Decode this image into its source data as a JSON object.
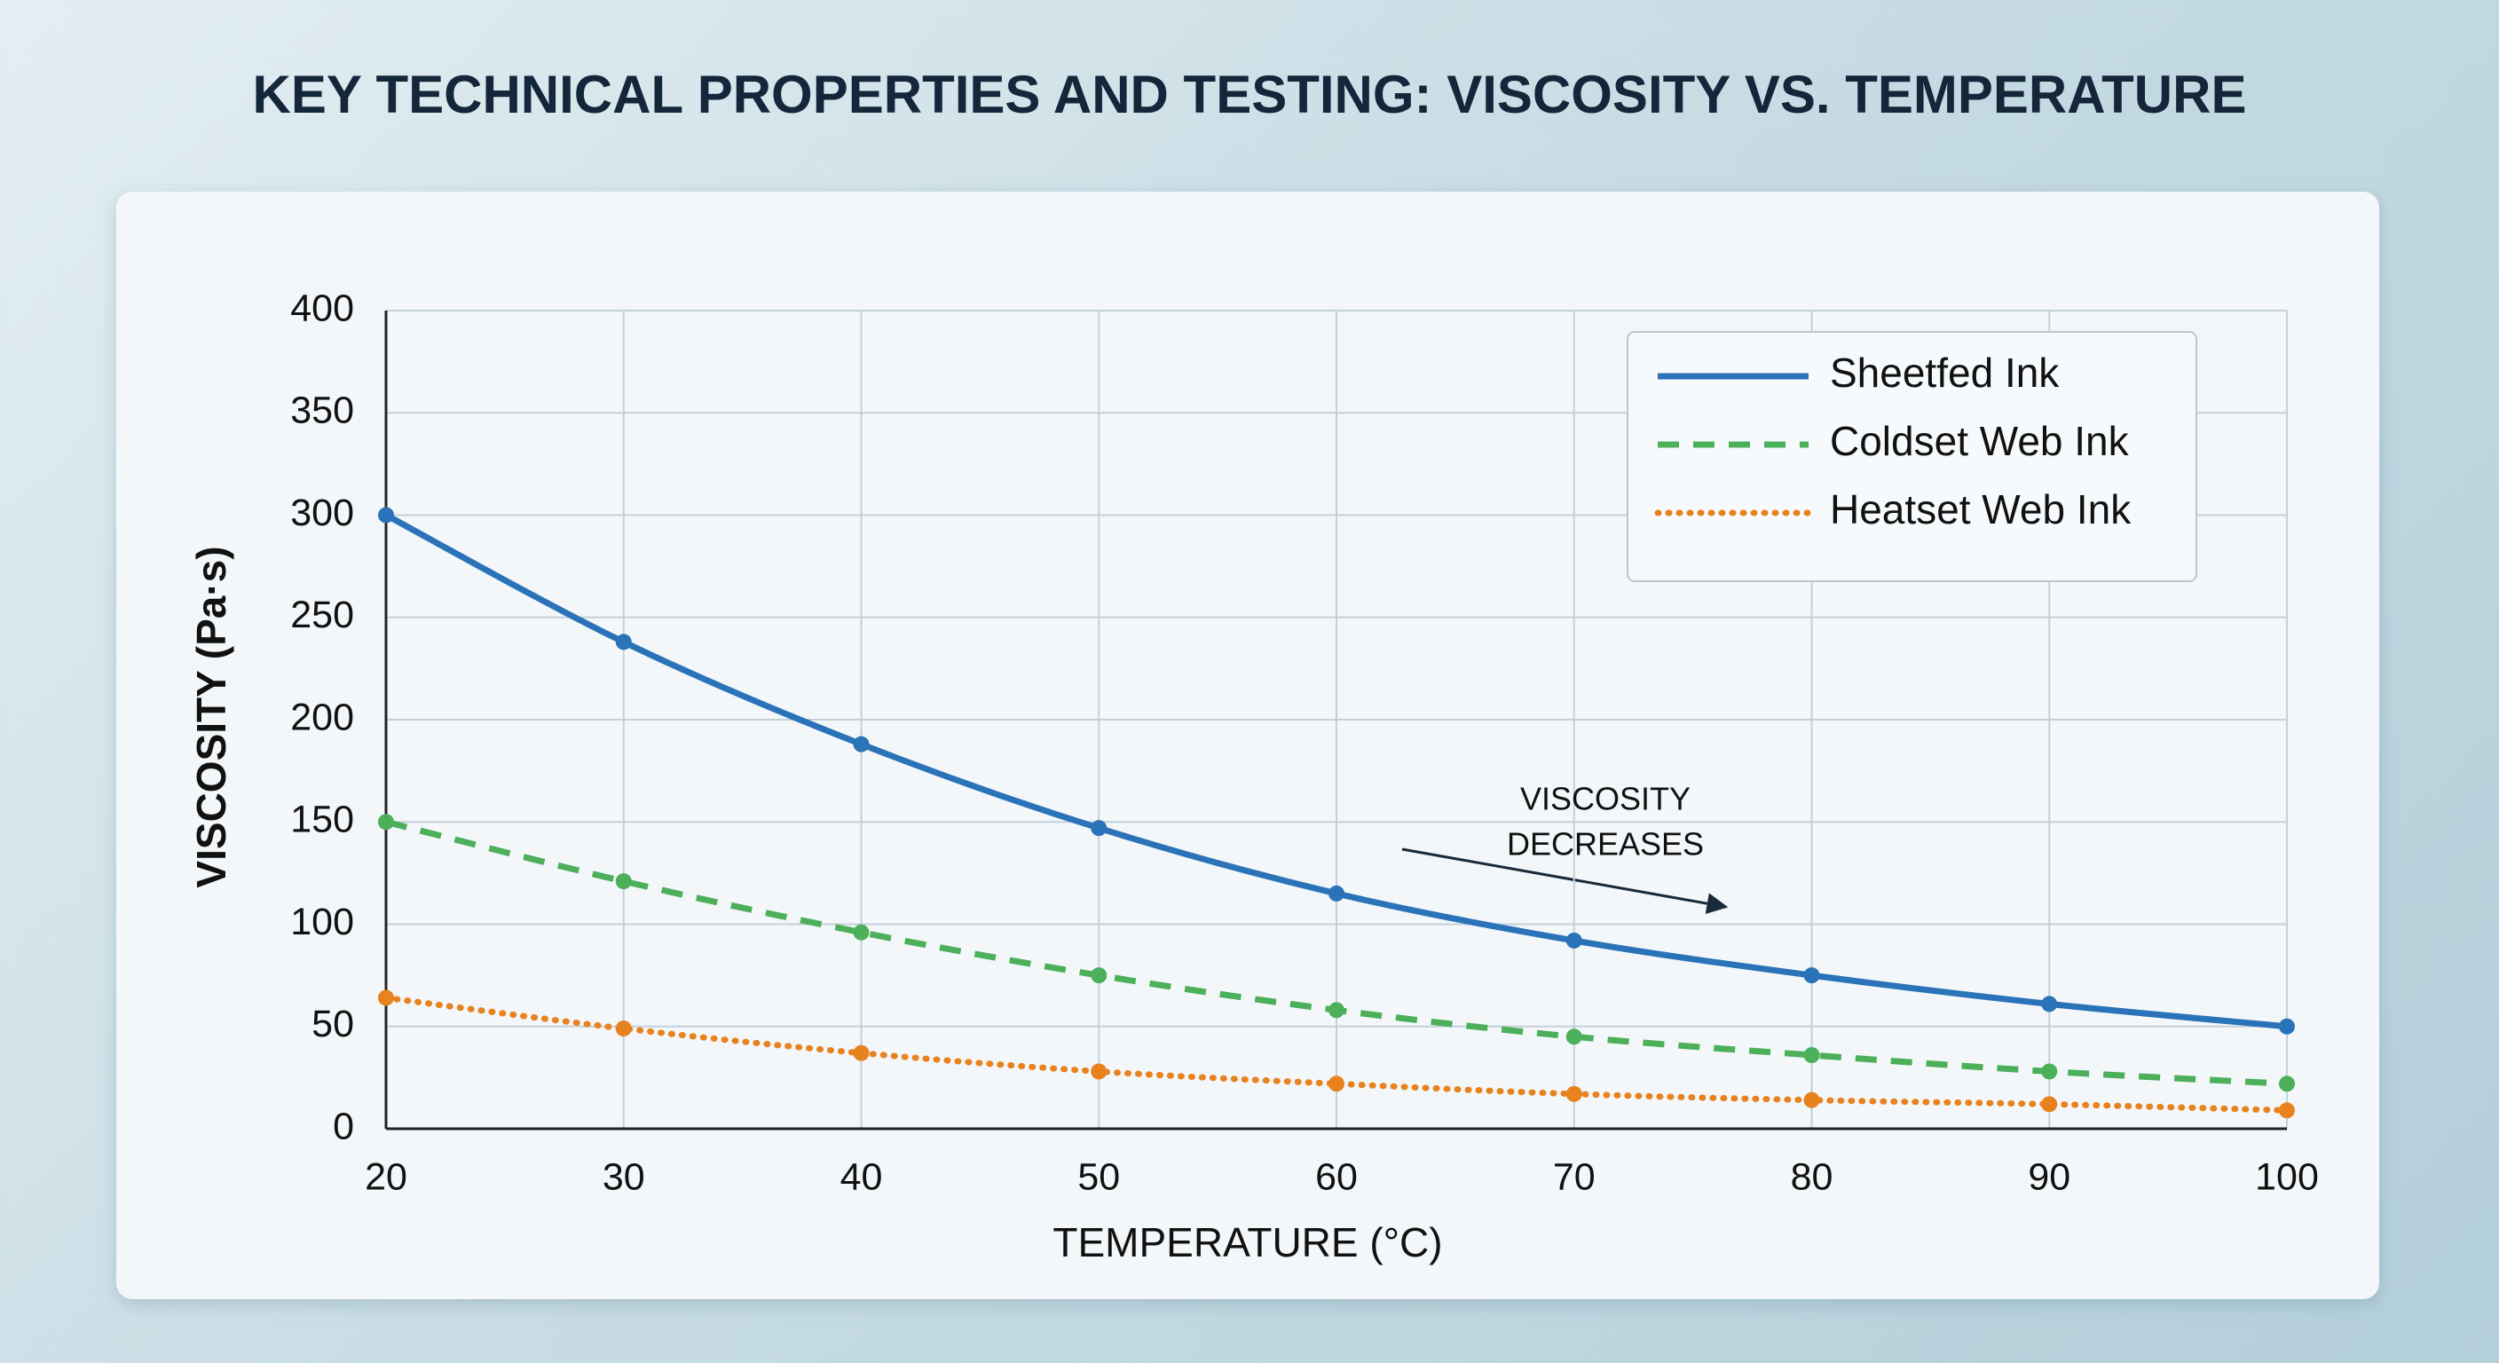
{
  "chart_data": {
    "type": "line",
    "title": "KEY TECHNICAL PROPERTIES AND TESTING: VISCOSITY VS. TEMPERATURE",
    "x_label": "TEMPERATURE (°C)",
    "y_label": "VISCOSITY (Pa·s)",
    "x": [
      20,
      30,
      40,
      50,
      60,
      70,
      80,
      90,
      100
    ],
    "series": [
      {
        "name": "Sheetfed Ink",
        "color": "#2a73b8",
        "dash": "solid",
        "values": [
          300,
          238,
          188,
          147,
          115,
          92,
          75,
          61,
          50
        ]
      },
      {
        "name": "Coldset Web Ink",
        "color": "#4caf5a",
        "dash": "dashed",
        "values": [
          150,
          121,
          96,
          75,
          58,
          45,
          36,
          28,
          22
        ]
      },
      {
        "name": "Heatset Web Ink",
        "color": "#e8821e",
        "dash": "dotted",
        "values": [
          64,
          49,
          37,
          28,
          22,
          17,
          14,
          12,
          9
        ]
      }
    ],
    "xlim": [
      20,
      100
    ],
    "xticks": [
      20,
      30,
      40,
      50,
      60,
      70,
      80,
      90,
      100
    ],
    "ylim": [
      0,
      400
    ],
    "yticks": [
      0,
      50,
      100,
      150,
      200,
      250,
      300,
      350,
      400
    ],
    "grid": true,
    "legend": "upper right",
    "annotation": [
      "VISCOSITY",
      "DECREASES"
    ]
  }
}
